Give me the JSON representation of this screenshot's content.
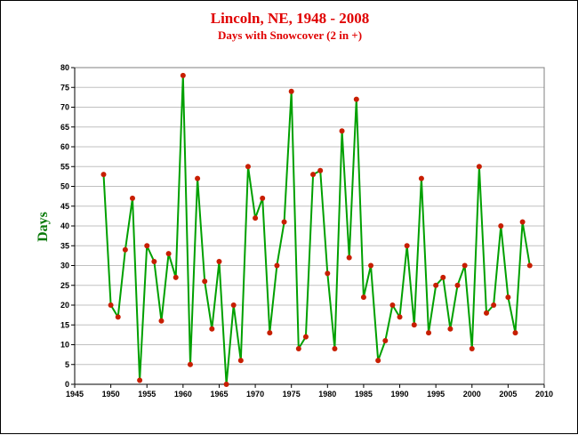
{
  "chart_data": {
    "type": "line",
    "title": "Lincoln, NE, 1948 - 2008",
    "subtitle": "Days with Snowcover (2 in +)",
    "xlabel": "",
    "ylabel": "Days",
    "xlim": [
      1945,
      2010
    ],
    "ylim": [
      0,
      80
    ],
    "x_ticks": [
      "1945",
      "1950",
      "1955",
      "1960",
      "1965",
      "1970",
      "1975",
      "1980",
      "1985",
      "1990",
      "1995",
      "2000",
      "2005",
      "2010"
    ],
    "y_ticks": [
      "0",
      "5",
      "10",
      "15",
      "20",
      "25",
      "30",
      "35",
      "40",
      "45",
      "50",
      "55",
      "60",
      "65",
      "70",
      "75",
      "80"
    ],
    "grid": true,
    "legend": "none",
    "series": [
      {
        "line_color": "#00a000",
        "marker_color": "#c81e00",
        "x": [
          1949,
          1950,
          1951,
          1952,
          1953,
          1954,
          1955,
          1956,
          1957,
          1958,
          1959,
          1960,
          1961,
          1962,
          1963,
          1964,
          1965,
          1966,
          1967,
          1968,
          1969,
          1970,
          1971,
          1972,
          1973,
          1974,
          1975,
          1976,
          1977,
          1978,
          1979,
          1980,
          1981,
          1982,
          1983,
          1984,
          1985,
          1986,
          1987,
          1988,
          1989,
          1990,
          1991,
          1992,
          1993,
          1994,
          1995,
          1996,
          1997,
          1998,
          1999,
          2000,
          2001,
          2002,
          2003,
          2004,
          2005,
          2006,
          2007,
          2008
        ],
        "values": [
          53,
          20,
          17,
          34,
          47,
          1,
          35,
          31,
          16,
          33,
          27,
          78,
          5,
          52,
          26,
          14,
          31,
          0,
          20,
          6,
          55,
          42,
          47,
          13,
          30,
          41,
          74,
          9,
          12,
          53,
          54,
          28,
          9,
          64,
          32,
          72,
          22,
          30,
          6,
          11,
          20,
          17,
          35,
          15,
          52,
          13,
          25,
          27,
          14,
          25,
          30,
          9,
          55,
          18,
          20,
          40,
          22,
          13,
          41,
          30
        ]
      }
    ]
  }
}
